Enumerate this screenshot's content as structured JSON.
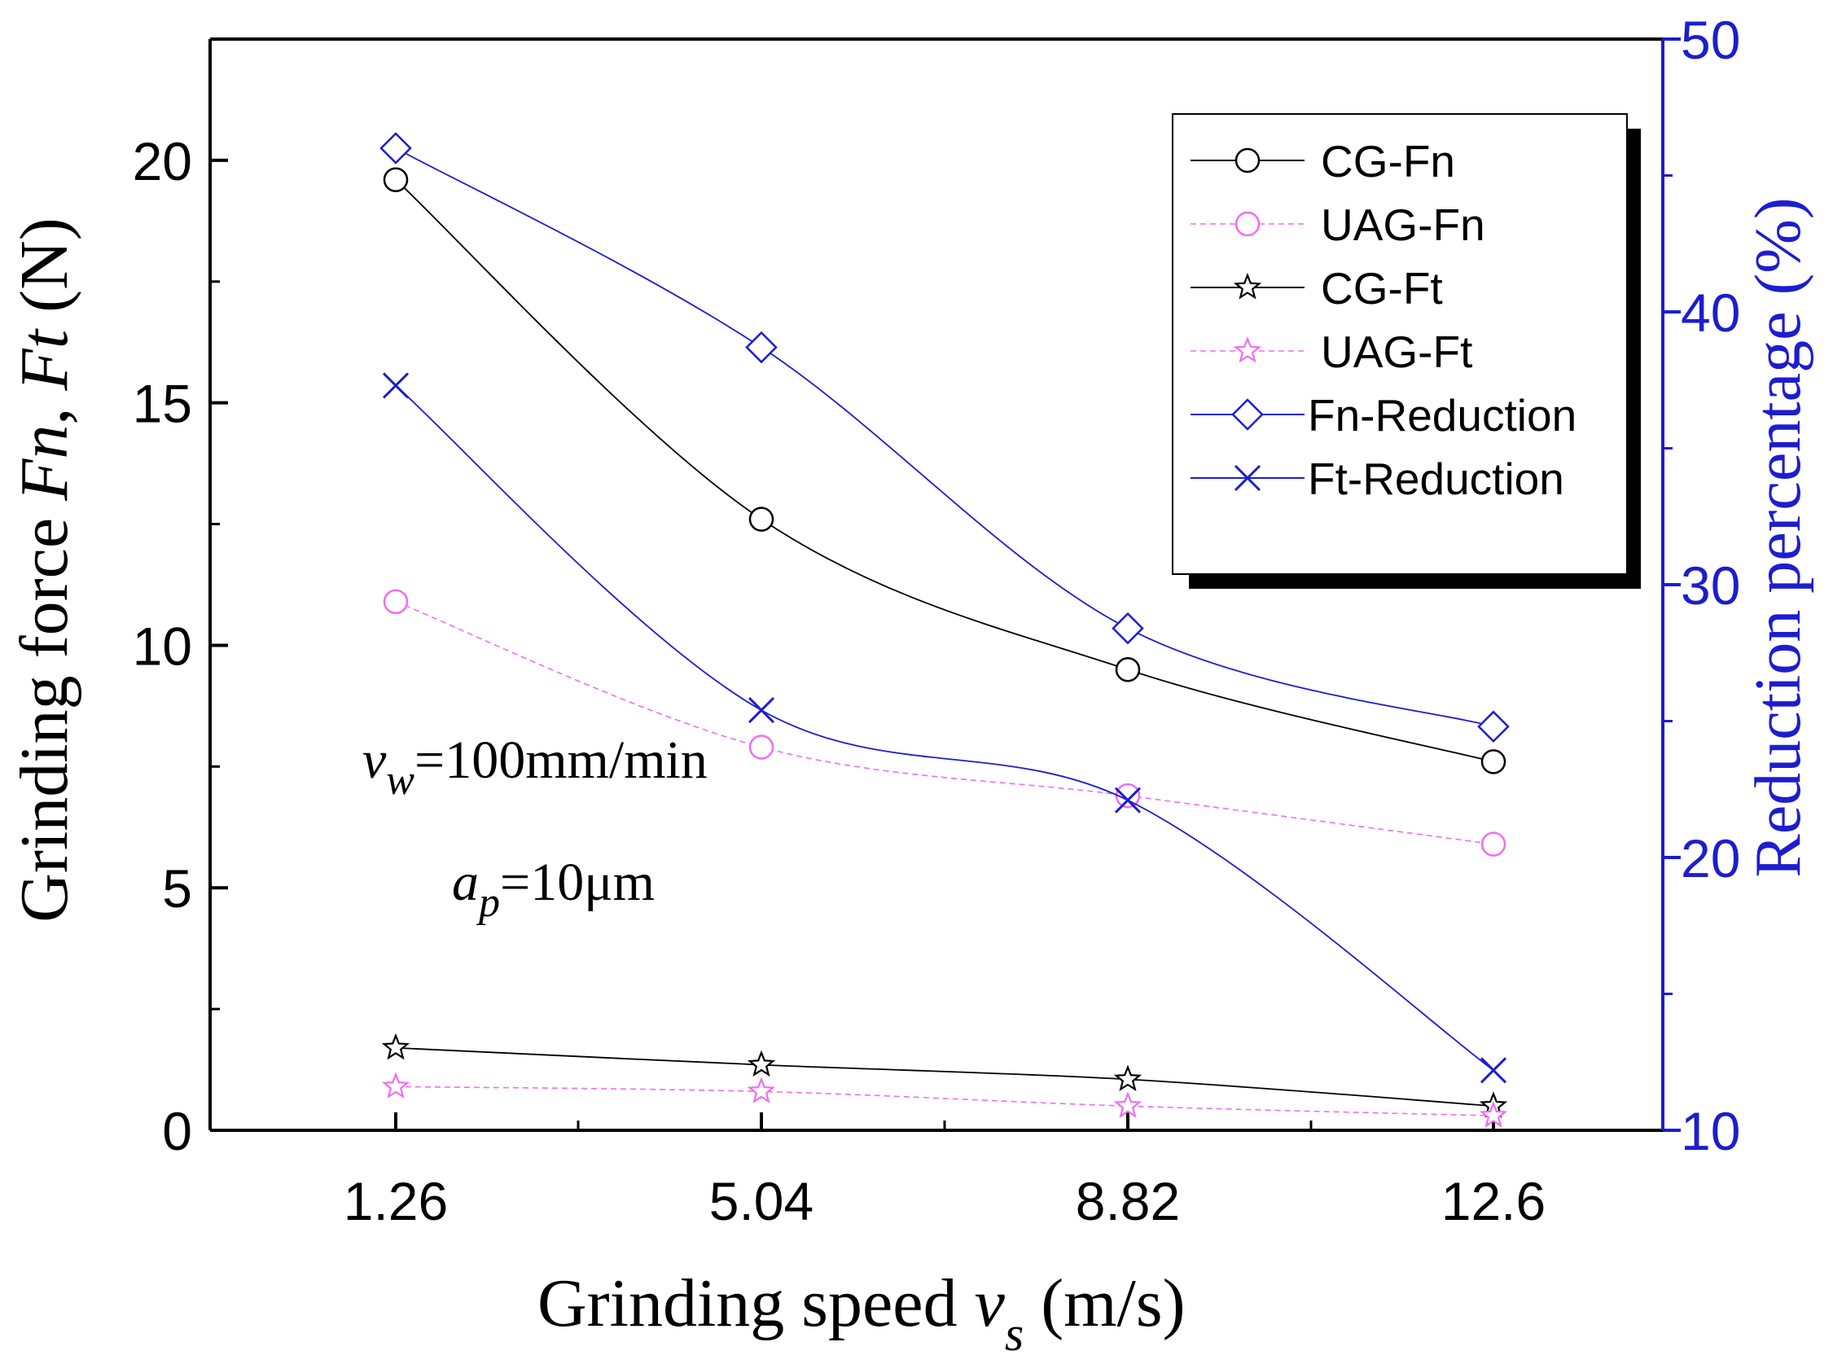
{
  "chart_data": {
    "type": "line",
    "xlabel": {
      "prefix": "Grinding speed ",
      "var": "v",
      "sub": "s",
      "suffix": " (m/s)"
    },
    "ylabel": {
      "prefix": "Grinding force ",
      "var1": "Fn",
      "sep": ", ",
      "var2": "Ft",
      "suffix": " (N)"
    },
    "y2label": "Reduction percentage (%)",
    "categories": [
      "1.26",
      "5.04",
      "8.82",
      "12.6"
    ],
    "ylim": [
      0,
      22.5
    ],
    "y_ticks": [
      "0",
      "5",
      "10",
      "15",
      "20"
    ],
    "y2lim": [
      10,
      50
    ],
    "y2_ticks": [
      "10",
      "20",
      "30",
      "40",
      "50"
    ],
    "series": [
      {
        "name": "CG-Fn",
        "axis": "left",
        "marker": "circle",
        "color": "#000000",
        "dashed": false,
        "values": [
          19.6,
          12.6,
          9.5,
          7.6
        ]
      },
      {
        "name": "UAG-Fn",
        "axis": "left",
        "marker": "circle",
        "color": "#f26cf2",
        "dashed": true,
        "values": [
          10.9,
          7.9,
          6.9,
          5.9
        ]
      },
      {
        "name": "CG-Ft",
        "axis": "left",
        "marker": "star",
        "color": "#000000",
        "dashed": false,
        "values": [
          1.7,
          1.35,
          1.05,
          0.5
        ]
      },
      {
        "name": "UAG-Ft",
        "axis": "left",
        "marker": "star",
        "color": "#f26cf2",
        "dashed": true,
        "values": [
          0.9,
          0.8,
          0.5,
          0.3
        ]
      },
      {
        "name": "Fn-Reduction",
        "axis": "right",
        "marker": "diamond",
        "color": "#1d1dcf",
        "dashed": false,
        "values": [
          46.0,
          38.7,
          28.4,
          24.8
        ]
      },
      {
        "name": "Ft-Reduction",
        "axis": "right",
        "marker": "x",
        "color": "#1d1dcf",
        "dashed": false,
        "values": [
          37.3,
          25.4,
          22.1,
          12.2
        ]
      }
    ],
    "annotations": [
      {
        "var": "v",
        "sub": "w",
        "text": "=100mm/min"
      },
      {
        "var": "a",
        "sub": "p",
        "text": "=10μm"
      }
    ],
    "legend_position": "top-right"
  }
}
